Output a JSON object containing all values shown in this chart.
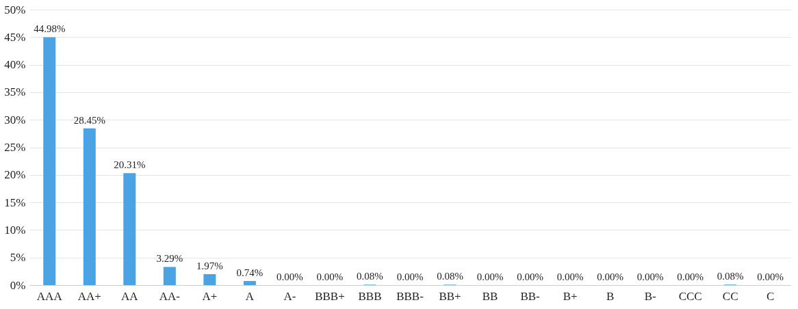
{
  "chart_data": {
    "type": "bar",
    "categories": [
      "AAA",
      "AA+",
      "AA",
      "AA-",
      "A+",
      "A",
      "A-",
      "BBB+",
      "BBB",
      "BBB-",
      "BB+",
      "BB",
      "BB-",
      "B+",
      "B",
      "B-",
      "CCC",
      "CC",
      "C"
    ],
    "values": [
      44.98,
      28.45,
      20.31,
      3.29,
      1.97,
      0.74,
      0,
      0,
      0.08,
      0,
      0.08,
      0,
      0,
      0,
      0,
      0,
      0,
      0.08,
      0
    ],
    "value_labels": [
      "44.98%",
      "28.45%",
      "20.31%",
      "3.29%",
      "1.97%",
      "0.74%",
      "0.00%",
      "0.00%",
      "0.08%",
      "0.00%",
      "0.08%",
      "0.00%",
      "0.00%",
      "0.00%",
      "0.00%",
      "0.00%",
      "0.00%",
      "0.08%",
      "0.00%"
    ],
    "color": "#4aa3e2",
    "ylim": [
      0,
      50
    ],
    "yticks": [
      {
        "value": 0,
        "label": "0%"
      },
      {
        "value": 5,
        "label": "5%"
      },
      {
        "value": 10,
        "label": "10%"
      },
      {
        "value": 15,
        "label": "15%"
      },
      {
        "value": 20,
        "label": "20%"
      },
      {
        "value": 25,
        "label": "25%"
      },
      {
        "value": 30,
        "label": "30%"
      },
      {
        "value": 35,
        "label": "35%"
      },
      {
        "value": 40,
        "label": "40%"
      },
      {
        "value": 45,
        "label": "45%"
      },
      {
        "value": 50,
        "label": "50%"
      }
    ],
    "grid": "y"
  }
}
